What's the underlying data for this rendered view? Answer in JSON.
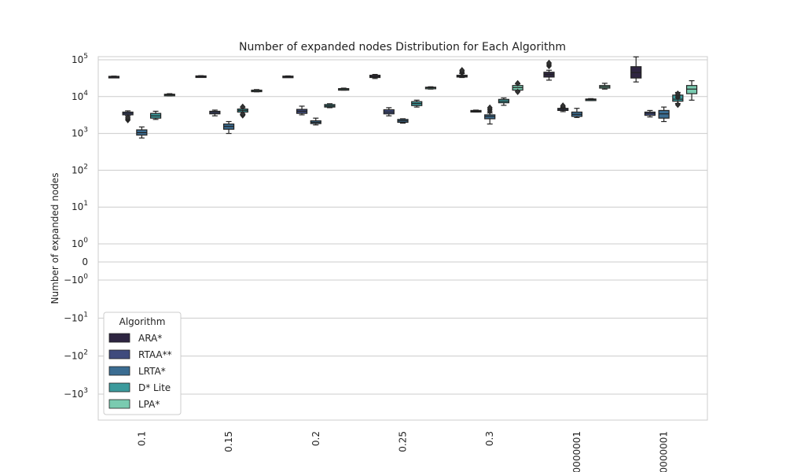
{
  "chart_data": {
    "type": "box",
    "title": "Number of expanded nodes Distribution for Each Algorithm",
    "xlabel": "",
    "ylabel": "Number of expanded nodes",
    "yscale": "symlog",
    "ylim": [
      -3000,
      150000
    ],
    "grid": "y",
    "categories": [
      "0.1",
      "0.15",
      "0.2",
      "0.25",
      "0.3",
      "0000001",
      "0000001"
    ],
    "y_ticks": [
      {
        "value": 100000,
        "base": "10",
        "exp": "5",
        "neg": false
      },
      {
        "value": 10000,
        "base": "10",
        "exp": "4",
        "neg": false
      },
      {
        "value": 1000,
        "base": "10",
        "exp": "3",
        "neg": false
      },
      {
        "value": 100,
        "base": "10",
        "exp": "2",
        "neg": false
      },
      {
        "value": 10,
        "base": "10",
        "exp": "1",
        "neg": false
      },
      {
        "value": 1,
        "base": "10",
        "exp": "0",
        "neg": false
      },
      {
        "value": 0,
        "base": "0",
        "exp": "",
        "neg": false
      },
      {
        "value": -1,
        "base": "10",
        "exp": "0",
        "neg": true
      },
      {
        "value": -10,
        "base": "10",
        "exp": "1",
        "neg": true
      },
      {
        "value": -100,
        "base": "10",
        "exp": "2",
        "neg": true
      },
      {
        "value": -1000,
        "base": "10",
        "exp": "3",
        "neg": true
      }
    ],
    "legend": {
      "title": "Algorithm",
      "placement": "lower-left"
    },
    "series": [
      {
        "name": "ARA*",
        "color": "#2e2541",
        "boxes": [
          {
            "min": 33000,
            "q1": 34000,
            "median": 34500,
            "q3": 35500,
            "max": 36000,
            "outliers": []
          },
          {
            "min": 34500,
            "q1": 35000,
            "median": 35500,
            "q3": 36500,
            "max": 37000,
            "outliers": []
          },
          {
            "min": 33500,
            "q1": 34000,
            "median": 35000,
            "q3": 36000,
            "max": 36500,
            "outliers": []
          },
          {
            "min": 31000,
            "q1": 33000,
            "median": 35000,
            "q3": 38000,
            "max": 40000,
            "outliers": []
          },
          {
            "min": 33000,
            "q1": 34000,
            "median": 36000,
            "q3": 38000,
            "max": 42000,
            "outliers": [
              44000,
              48000,
              52000
            ]
          },
          {
            "min": 28000,
            "q1": 34000,
            "median": 40000,
            "q3": 46000,
            "max": 52000,
            "outliers": [
              68000,
              75000,
              82000
            ]
          },
          {
            "min": 25000,
            "q1": 32000,
            "median": 45000,
            "q3": 65000,
            "max": 120000,
            "outliers": []
          }
        ]
      },
      {
        "name": "RTAA**",
        "color": "#3f4b7d",
        "boxes": [
          {
            "min": 3000,
            "q1": 3200,
            "median": 3500,
            "q3": 3800,
            "max": 4100,
            "outliers": [
              2300,
              2500,
              2700
            ]
          },
          {
            "min": 3000,
            "q1": 3400,
            "median": 3700,
            "q3": 4000,
            "max": 4300,
            "outliers": []
          },
          {
            "min": 3200,
            "q1": 3500,
            "median": 4000,
            "q3": 4500,
            "max": 5500,
            "outliers": []
          },
          {
            "min": 3000,
            "q1": 3400,
            "median": 3800,
            "q3": 4400,
            "max": 5000,
            "outliers": []
          },
          {
            "min": 3800,
            "q1": 3900,
            "median": 4000,
            "q3": 4200,
            "max": 4300,
            "outliers": []
          },
          {
            "min": 3900,
            "q1": 4200,
            "median": 4500,
            "q3": 4800,
            "max": 5000,
            "outliers": [
              5300,
              5700
            ]
          },
          {
            "min": 2800,
            "q1": 3100,
            "median": 3500,
            "q3": 3800,
            "max": 4200,
            "outliers": []
          }
        ]
      },
      {
        "name": "LRTA*",
        "color": "#3b6d92",
        "boxes": [
          {
            "min": 750,
            "q1": 900,
            "median": 1050,
            "q3": 1250,
            "max": 1500,
            "outliers": []
          },
          {
            "min": 1000,
            "q1": 1300,
            "median": 1550,
            "q3": 1800,
            "max": 2100,
            "outliers": []
          },
          {
            "min": 1700,
            "q1": 1850,
            "median": 2000,
            "q3": 2200,
            "max": 2600,
            "outliers": []
          },
          {
            "min": 1900,
            "q1": 2000,
            "median": 2200,
            "q3": 2400,
            "max": 2500,
            "outliers": []
          },
          {
            "min": 1800,
            "q1": 2500,
            "median": 2900,
            "q3": 3200,
            "max": 3600,
            "outliers": [
              4000,
              4500,
              5000
            ]
          },
          {
            "min": 2700,
            "q1": 2900,
            "median": 3300,
            "q3": 3800,
            "max": 4800,
            "outliers": []
          },
          {
            "min": 2100,
            "q1": 2600,
            "median": 3400,
            "q3": 4200,
            "max": 5200,
            "outliers": []
          }
        ]
      },
      {
        "name": "D* Lite",
        "color": "#3b9a9c",
        "boxes": [
          {
            "min": 2400,
            "q1": 2600,
            "median": 3000,
            "q3": 3500,
            "max": 4000,
            "outliers": []
          },
          {
            "min": 3300,
            "q1": 3800,
            "median": 4200,
            "q3": 4600,
            "max": 5000,
            "outliers": [
              3100,
              3400,
              5300
            ]
          },
          {
            "min": 5000,
            "q1": 5200,
            "median": 5600,
            "q3": 6100,
            "max": 6400,
            "outliers": []
          },
          {
            "min": 5200,
            "q1": 5700,
            "median": 6500,
            "q3": 7300,
            "max": 8000,
            "outliers": []
          },
          {
            "min": 5800,
            "q1": 6800,
            "median": 7500,
            "q3": 8400,
            "max": 9200,
            "outliers": []
          },
          {
            "min": 7800,
            "q1": 8000,
            "median": 8300,
            "q3": 8600,
            "max": 8800,
            "outliers": []
          },
          {
            "min": 6500,
            "q1": 7500,
            "median": 8500,
            "q3": 11000,
            "max": 13000,
            "outliers": [
              6000,
              9500,
              10500,
              12000
            ]
          }
        ]
      },
      {
        "name": "LPA*",
        "color": "#7acbb0",
        "boxes": [
          {
            "min": 10500,
            "q1": 10800,
            "median": 11200,
            "q3": 11600,
            "max": 12000,
            "outliers": []
          },
          {
            "min": 13500,
            "q1": 14000,
            "median": 14500,
            "q3": 15000,
            "max": 15500,
            "outliers": []
          },
          {
            "min": 15000,
            "q1": 15500,
            "median": 16000,
            "q3": 16500,
            "max": 17000,
            "outliers": []
          },
          {
            "min": 16000,
            "q1": 16500,
            "median": 17500,
            "q3": 18000,
            "max": 18500,
            "outliers": []
          },
          {
            "min": 14000,
            "q1": 15000,
            "median": 17500,
            "q3": 20000,
            "max": 22000,
            "outliers": [
              13500,
              23000
            ]
          },
          {
            "min": 16000,
            "q1": 17000,
            "median": 18500,
            "q3": 20000,
            "max": 23000,
            "outliers": []
          },
          {
            "min": 8000,
            "q1": 12000,
            "median": 16000,
            "q3": 20000,
            "max": 27000,
            "outliers": []
          }
        ]
      }
    ]
  }
}
